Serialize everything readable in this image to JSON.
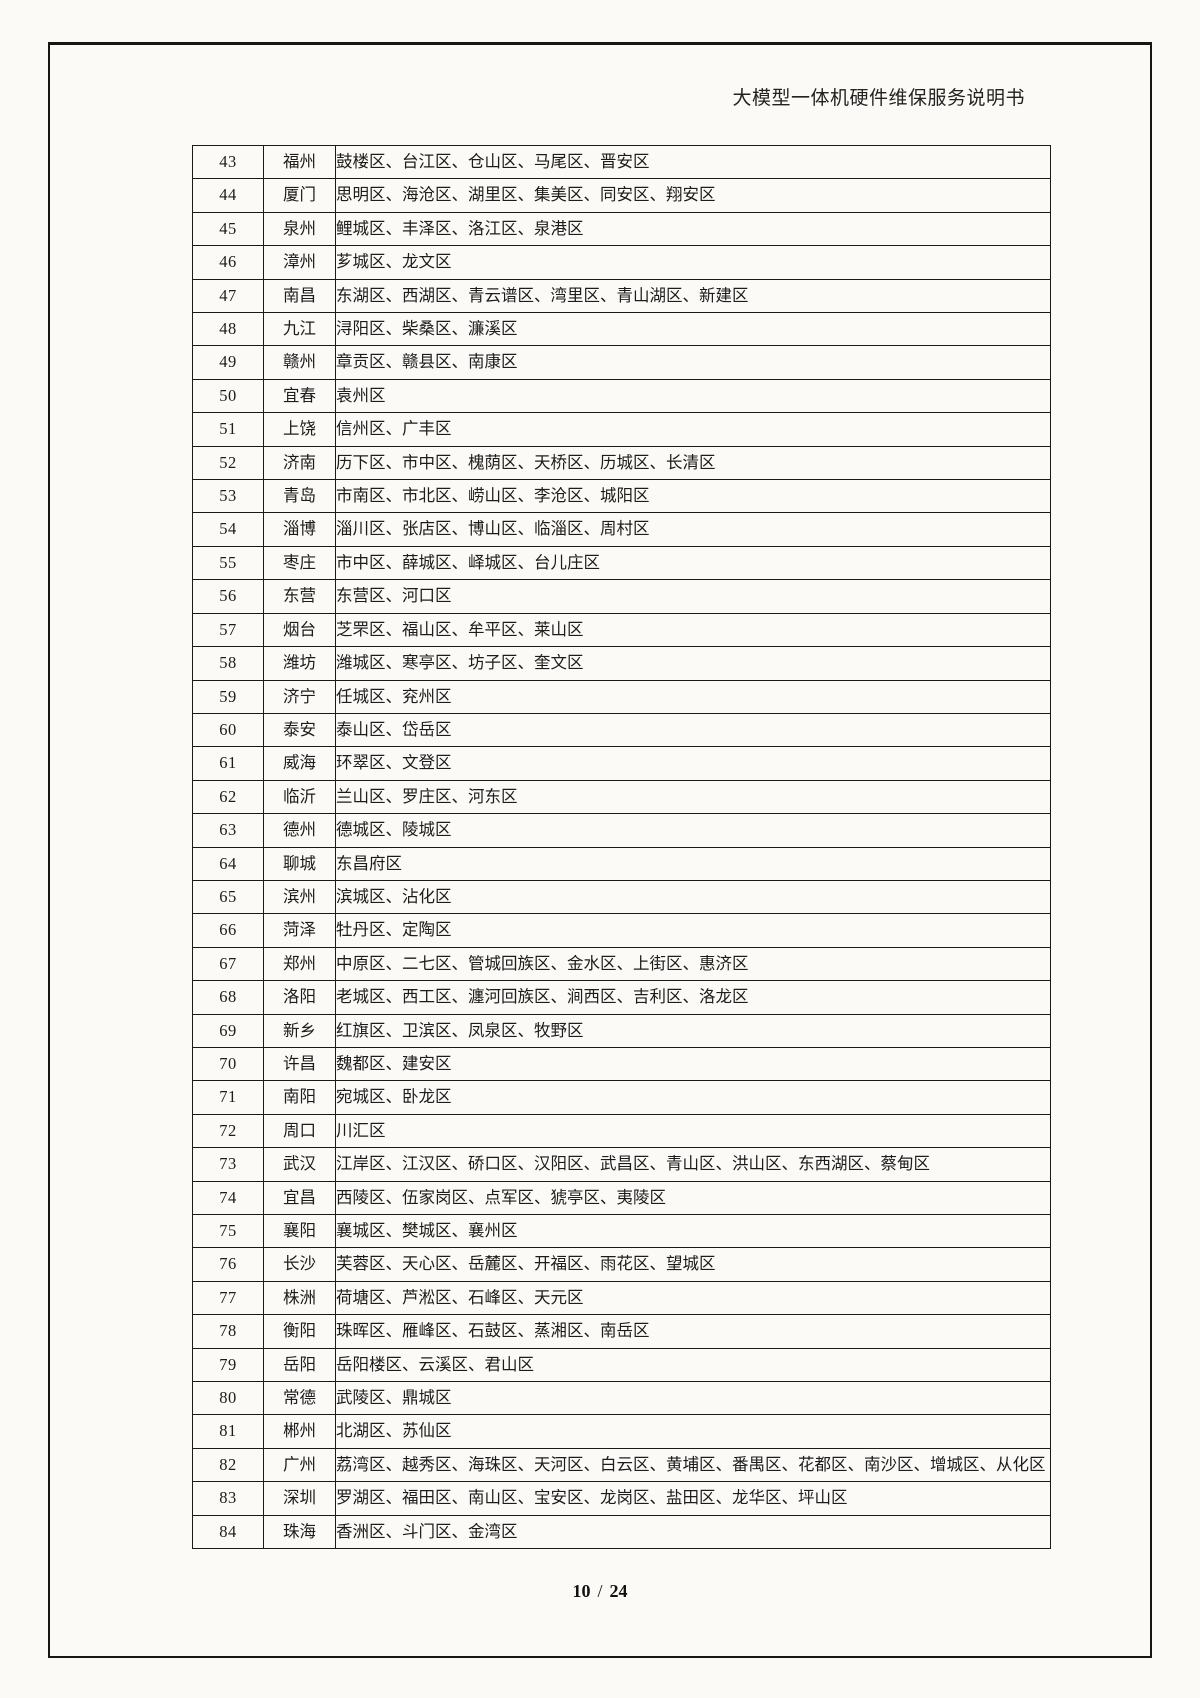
{
  "header": {
    "title": "大模型一体机硬件维保服务说明书"
  },
  "footer": {
    "page": "10",
    "separator": "/",
    "total": "24"
  },
  "table": {
    "rows": [
      {
        "no": "43",
        "city": "福州",
        "districts": "鼓楼区、台江区、仓山区、马尾区、晋安区"
      },
      {
        "no": "44",
        "city": "厦门",
        "districts": "思明区、海沧区、湖里区、集美区、同安区、翔安区"
      },
      {
        "no": "45",
        "city": "泉州",
        "districts": "鲤城区、丰泽区、洛江区、泉港区"
      },
      {
        "no": "46",
        "city": "漳州",
        "districts": "芗城区、龙文区"
      },
      {
        "no": "47",
        "city": "南昌",
        "districts": "东湖区、西湖区、青云谱区、湾里区、青山湖区、新建区"
      },
      {
        "no": "48",
        "city": "九江",
        "districts": "浔阳区、柴桑区、濂溪区"
      },
      {
        "no": "49",
        "city": "赣州",
        "districts": "章贡区、赣县区、南康区"
      },
      {
        "no": "50",
        "city": "宜春",
        "districts": "袁州区"
      },
      {
        "no": "51",
        "city": "上饶",
        "districts": "信州区、广丰区"
      },
      {
        "no": "52",
        "city": "济南",
        "districts": "历下区、市中区、槐荫区、天桥区、历城区、长清区"
      },
      {
        "no": "53",
        "city": "青岛",
        "districts": "市南区、市北区、崂山区、李沧区、城阳区"
      },
      {
        "no": "54",
        "city": "淄博",
        "districts": "淄川区、张店区、博山区、临淄区、周村区"
      },
      {
        "no": "55",
        "city": "枣庄",
        "districts": "市中区、薛城区、峄城区、台儿庄区"
      },
      {
        "no": "56",
        "city": "东营",
        "districts": "东营区、河口区"
      },
      {
        "no": "57",
        "city": "烟台",
        "districts": "芝罘区、福山区、牟平区、莱山区"
      },
      {
        "no": "58",
        "city": "潍坊",
        "districts": "潍城区、寒亭区、坊子区、奎文区"
      },
      {
        "no": "59",
        "city": "济宁",
        "districts": "任城区、兖州区"
      },
      {
        "no": "60",
        "city": "泰安",
        "districts": "泰山区、岱岳区"
      },
      {
        "no": "61",
        "city": "威海",
        "districts": "环翠区、文登区"
      },
      {
        "no": "62",
        "city": "临沂",
        "districts": "兰山区、罗庄区、河东区"
      },
      {
        "no": "63",
        "city": "德州",
        "districts": "德城区、陵城区"
      },
      {
        "no": "64",
        "city": "聊城",
        "districts": "东昌府区"
      },
      {
        "no": "65",
        "city": "滨州",
        "districts": "滨城区、沾化区"
      },
      {
        "no": "66",
        "city": "菏泽",
        "districts": "牡丹区、定陶区"
      },
      {
        "no": "67",
        "city": "郑州",
        "districts": "中原区、二七区、管城回族区、金水区、上街区、惠济区"
      },
      {
        "no": "68",
        "city": "洛阳",
        "districts": "老城区、西工区、瀍河回族区、涧西区、吉利区、洛龙区"
      },
      {
        "no": "69",
        "city": "新乡",
        "districts": "红旗区、卫滨区、凤泉区、牧野区"
      },
      {
        "no": "70",
        "city": "许昌",
        "districts": "魏都区、建安区"
      },
      {
        "no": "71",
        "city": "南阳",
        "districts": "宛城区、卧龙区"
      },
      {
        "no": "72",
        "city": "周口",
        "districts": "川汇区"
      },
      {
        "no": "73",
        "city": "武汉",
        "districts": "江岸区、江汉区、硚口区、汉阳区、武昌区、青山区、洪山区、东西湖区、蔡甸区"
      },
      {
        "no": "74",
        "city": "宜昌",
        "districts": "西陵区、伍家岗区、点军区、猇亭区、夷陵区"
      },
      {
        "no": "75",
        "city": "襄阳",
        "districts": "襄城区、樊城区、襄州区"
      },
      {
        "no": "76",
        "city": "长沙",
        "districts": "芙蓉区、天心区、岳麓区、开福区、雨花区、望城区"
      },
      {
        "no": "77",
        "city": "株洲",
        "districts": "荷塘区、芦淞区、石峰区、天元区"
      },
      {
        "no": "78",
        "city": "衡阳",
        "districts": "珠晖区、雁峰区、石鼓区、蒸湘区、南岳区"
      },
      {
        "no": "79",
        "city": "岳阳",
        "districts": "岳阳楼区、云溪区、君山区"
      },
      {
        "no": "80",
        "city": "常德",
        "districts": "武陵区、鼎城区"
      },
      {
        "no": "81",
        "city": "郴州",
        "districts": "北湖区、苏仙区"
      },
      {
        "no": "82",
        "city": "广州",
        "districts": "荔湾区、越秀区、海珠区、天河区、白云区、黄埔区、番禺区、花都区、南沙区、增城区、从化区"
      },
      {
        "no": "83",
        "city": "深圳",
        "districts": "罗湖区、福田区、南山区、宝安区、龙岗区、盐田区、龙华区、坪山区"
      },
      {
        "no": "84",
        "city": "珠海",
        "districts": "香洲区、斗门区、金湾区"
      }
    ]
  }
}
